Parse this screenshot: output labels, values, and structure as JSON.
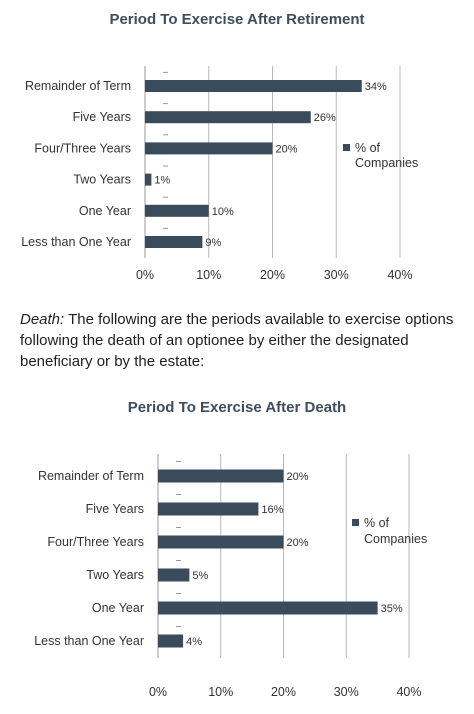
{
  "chart_data": [
    {
      "type": "bar",
      "orientation": "horizontal",
      "title": "Period To Exercise After Retirement",
      "categories": [
        "Remainder of Term",
        "Five Years",
        "Four/Three Years",
        "Two Years",
        "One Year",
        "Less than One Year"
      ],
      "series": [
        {
          "name": "% of Companies",
          "values": [
            34,
            26,
            20,
            1,
            10,
            9
          ]
        }
      ],
      "data_labels": [
        "34%",
        "26%",
        "20%",
        "1%",
        "10%",
        "9%"
      ],
      "xlim": [
        0,
        40
      ],
      "x_ticks": [
        "0%",
        "10%",
        "20%",
        "30%",
        "40%"
      ],
      "legend": {
        "line1": "% of",
        "line2": "Companies",
        "placement": "right"
      },
      "grid": true,
      "bar_color": "#3a4b5c"
    },
    {
      "type": "bar",
      "orientation": "horizontal",
      "title": "Period To Exercise After Death",
      "categories": [
        "Remainder of Term",
        "Five Years",
        "Four/Three Years",
        "Two Years",
        "One Year",
        "Less than One Year"
      ],
      "series": [
        {
          "name": "% of Companies",
          "values": [
            20,
            16,
            20,
            5,
            35,
            4
          ]
        }
      ],
      "data_labels": [
        "20%",
        "16%",
        "20%",
        "5%",
        "35%",
        "4%"
      ],
      "xlim": [
        0,
        40
      ],
      "x_ticks": [
        "0%",
        "10%",
        "20%",
        "30%",
        "40%"
      ],
      "legend": {
        "line1": "% of",
        "line2": "Companies",
        "placement": "right"
      },
      "grid": true,
      "bar_color": "#3a4b5c"
    }
  ],
  "paragraph": {
    "lead": "Death:",
    "text": " The following are the periods available to exercise options following the death of an optionee by either the designated beneficiary or by the estate:"
  }
}
